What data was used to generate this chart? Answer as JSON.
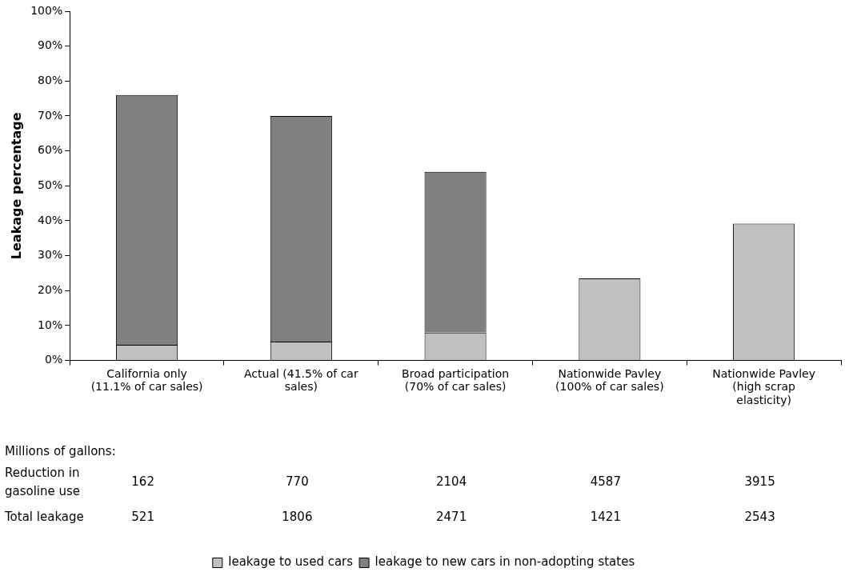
{
  "chart_data": {
    "type": "bar",
    "stacked": true,
    "ylabel": "Leakage percentage",
    "categories": [
      "California only (11.1% of car sales)",
      "Actual (41.5% of car sales)",
      "Broad participation (70% of car sales)",
      "Nationwide Pavley (100% of car sales)",
      "Nationwide Pavley (high scrap elasticity)"
    ],
    "series": [
      {
        "name": "leakage to used cars",
        "color": "#c0c0c0",
        "values": [
          4.5,
          5.4,
          8,
          23.5,
          39.2
        ]
      },
      {
        "name": "leakage to new cars in non-adopting states",
        "color": "#808080",
        "values": [
          71.5,
          64.6,
          46,
          null,
          null
        ]
      }
    ],
    "ylim": [
      0,
      100
    ],
    "yticks": [
      {
        "value": 0,
        "label": "0%"
      },
      {
        "value": 10,
        "label": "10%"
      },
      {
        "value": 20,
        "label": "20%"
      },
      {
        "value": 30,
        "label": "30%"
      },
      {
        "value": 40,
        "label": "40%"
      },
      {
        "value": 50,
        "label": "50%"
      },
      {
        "value": 60,
        "label": "60%"
      },
      {
        "value": 70,
        "label": "70%"
      },
      {
        "value": 80,
        "label": "80%"
      },
      {
        "value": 90,
        "label": "90%"
      },
      {
        "value": 100,
        "label": "100%"
      }
    ],
    "grid": false,
    "legend": "bottom",
    "annotations": [
      "Millions of gallons:",
      "Reduction in gasoline use",
      "162",
      "770",
      "2104",
      "4587",
      "3915",
      "Total leakage",
      "521",
      "1806",
      "2471",
      "1421",
      "2543"
    ]
  }
}
